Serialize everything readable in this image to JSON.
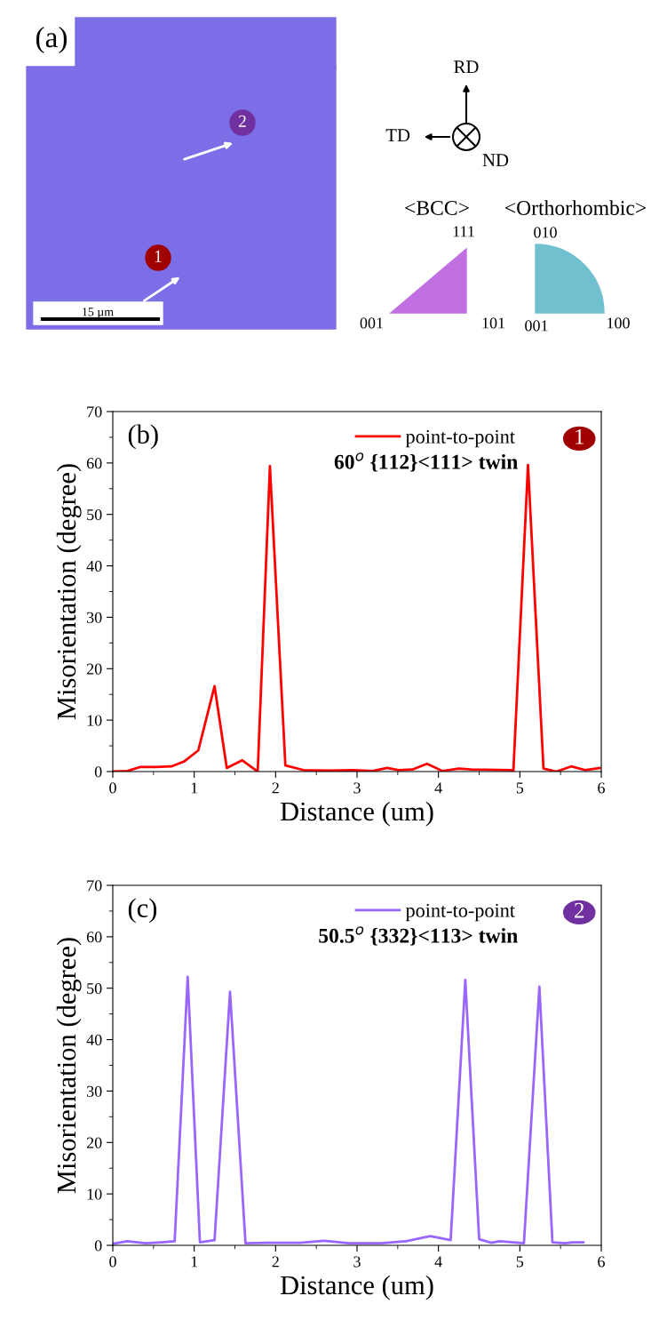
{
  "chart_data": [
    {
      "type": "other",
      "annotations": [
        "(a)",
        "15 µm",
        "1",
        "2",
        "RD",
        "TD",
        "ND",
        "<BCC>",
        "<Orthorhombic>",
        "111",
        "001",
        "101",
        "010",
        "001",
        "100"
      ]
    },
    {
      "type": "line",
      "xlabel": "Distance (um)",
      "ylabel": "Misorientation (degree)",
      "xlim": [
        0,
        6
      ],
      "ylim": [
        0,
        70
      ],
      "xticks": [
        0,
        1,
        2,
        3,
        4,
        5,
        6
      ],
      "yticks": [
        0,
        10,
        20,
        30,
        40,
        50,
        60,
        70
      ],
      "grid": false,
      "legend": "top right",
      "marker": "none",
      "line_style": "solid",
      "annotations": [
        "(b)",
        "60$^{o}$ {112}<111> twin",
        "1"
      ],
      "series": [
        {
          "name": "point-to-point",
          "color": "#ff0000",
          "x": [
            0,
            0.18,
            0.34,
            0.53,
            0.72,
            0.88,
            1.05,
            1.25,
            1.4,
            1.59,
            1.78,
            1.93,
            2.12,
            2.34,
            2.65,
            2.96,
            3.19,
            3.37,
            3.51,
            3.68,
            3.86,
            4.05,
            4.25,
            4.4,
            4.89,
            4.92,
            5.1,
            5.29,
            5.45,
            5.63,
            5.8,
            5.98
          ],
          "values": [
            0,
            0.1,
            0.9,
            0.9,
            1.0,
            2.0,
            4.1,
            16.6,
            0.7,
            2.2,
            0,
            59.4,
            1.2,
            0.3,
            0.2,
            0.3,
            0.1,
            0.7,
            0.3,
            0.4,
            1.5,
            0.1,
            0.6,
            0.4,
            0.3,
            0,
            59.6,
            0.6,
            0,
            1.0,
            0.3,
            0.7
          ]
        }
      ]
    },
    {
      "type": "line",
      "xlabel": "Distance (um)",
      "ylabel": "Misorientation (degree)",
      "xlim": [
        0,
        6
      ],
      "ylim": [
        0,
        70
      ],
      "xticks": [
        0,
        1,
        2,
        3,
        4,
        5,
        6
      ],
      "yticks": [
        0,
        10,
        20,
        30,
        40,
        50,
        60,
        70
      ],
      "grid": false,
      "legend": "top right",
      "marker": "none",
      "line_style": "solid",
      "annotations": [
        "(c)",
        "50.5$^{o}$ {332}<113> twin",
        "2"
      ],
      "series": [
        {
          "name": "point-to-point",
          "color": "#9966ff",
          "x": [
            0,
            0.18,
            0.4,
            0.6,
            0.76,
            0.92,
            1.07,
            1.25,
            1.44,
            1.63,
            1.9,
            2.3,
            2.6,
            2.9,
            3.3,
            3.6,
            3.9,
            4.15,
            4.33,
            4.5,
            4.65,
            4.75,
            5.05,
            5.24,
            5.4,
            5.55,
            5.65,
            5.78
          ],
          "values": [
            0.3,
            0.8,
            0.4,
            0.6,
            0.8,
            52.2,
            0.6,
            1.0,
            49.3,
            0.4,
            0.5,
            0.5,
            0.9,
            0.4,
            0.4,
            0.8,
            1.8,
            1.0,
            51.6,
            1.2,
            0.5,
            0.8,
            0.4,
            50.3,
            0.6,
            0.4,
            0.6,
            0.6
          ]
        }
      ]
    }
  ]
}
